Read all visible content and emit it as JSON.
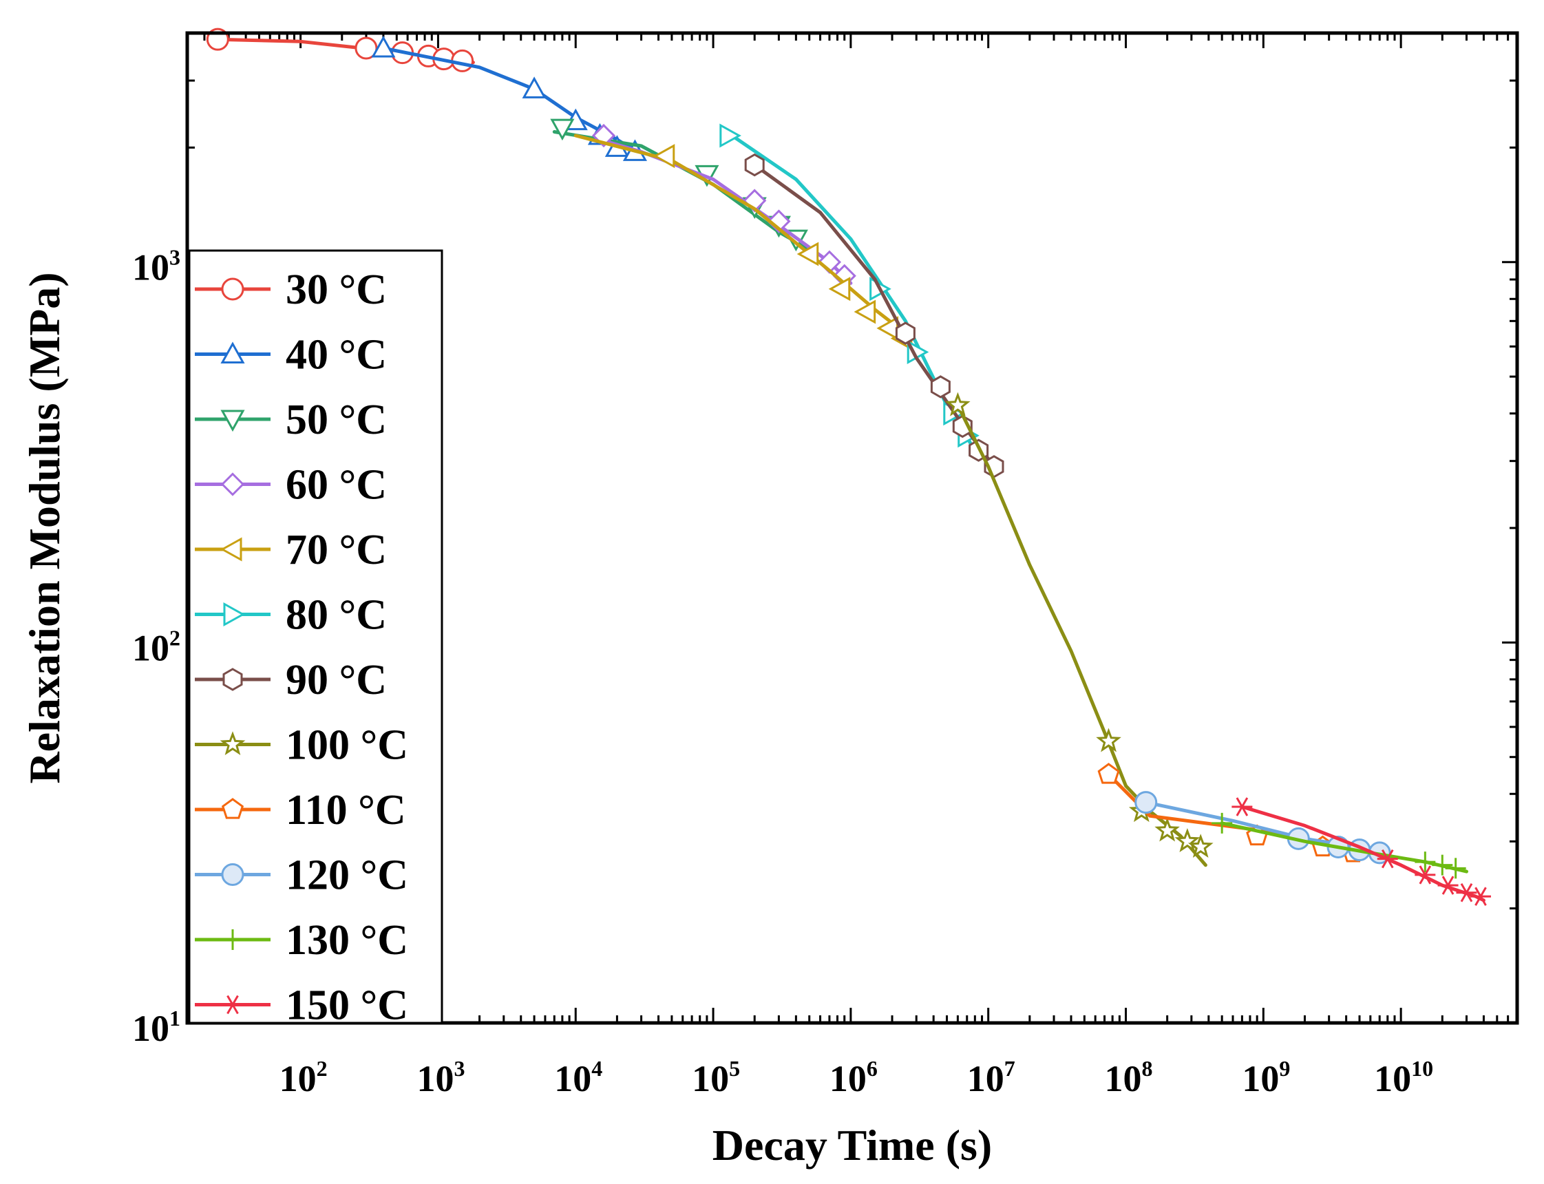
{
  "chart_data": {
    "type": "line",
    "title": "",
    "xlabel": "Decay Time (s)",
    "ylabel": "Relaxation Modulus (MPa)",
    "x_scale": "log",
    "y_scale": "log",
    "xlim": [
      15,
      70000000000
    ],
    "ylim": [
      10,
      4000
    ],
    "x_ticks": [
      {
        "value": 100,
        "base": "10",
        "exp": "2"
      },
      {
        "value": 1000,
        "base": "10",
        "exp": "3"
      },
      {
        "value": 10000,
        "base": "10",
        "exp": "4"
      },
      {
        "value": 100000,
        "base": "10",
        "exp": "5"
      },
      {
        "value": 1000000,
        "base": "10",
        "exp": "6"
      },
      {
        "value": 10000000,
        "base": "10",
        "exp": "7"
      },
      {
        "value": 100000000,
        "base": "10",
        "exp": "8"
      },
      {
        "value": 1000000000,
        "base": "10",
        "exp": "9"
      },
      {
        "value": 10000000000,
        "base": "10",
        "exp": "10"
      }
    ],
    "y_ticks": [
      {
        "value": 10,
        "base": "10",
        "exp": "1"
      },
      {
        "value": 100,
        "base": "10",
        "exp": "2"
      },
      {
        "value": 1000,
        "base": "10",
        "exp": "3"
      }
    ],
    "legend_position": "left",
    "series": [
      {
        "name": "30 °C",
        "color": "#e8453c",
        "marker": "circle",
        "line": [
          [
            25,
            3850
          ],
          [
            100,
            3800
          ],
          [
            400,
            3600
          ],
          [
            1000,
            3450
          ],
          [
            1800,
            3350
          ]
        ],
        "points": [
          [
            25,
            3850
          ],
          [
            300,
            3650
          ],
          [
            550,
            3550
          ],
          [
            850,
            3480
          ],
          [
            1100,
            3420
          ],
          [
            1500,
            3380
          ]
        ]
      },
      {
        "name": "40 °C",
        "color": "#1f6fd1",
        "marker": "triangle-up",
        "line": [
          [
            400,
            3650
          ],
          [
            2000,
            3250
          ],
          [
            5000,
            2850
          ],
          [
            10000,
            2400
          ],
          [
            20000,
            2100
          ],
          [
            30000,
            1920
          ]
        ],
        "points": [
          [
            400,
            3650
          ],
          [
            5000,
            2850
          ],
          [
            10000,
            2350
          ],
          [
            15000,
            2150
          ],
          [
            20000,
            2000
          ],
          [
            27000,
            1950
          ]
        ]
      },
      {
        "name": "50 °C",
        "color": "#2fa36b",
        "marker": "triangle-down",
        "line": [
          [
            7000,
            2200
          ],
          [
            30000,
            2020
          ],
          [
            100000,
            1600
          ],
          [
            300000,
            1200
          ],
          [
            500000,
            1080
          ]
        ],
        "points": [
          [
            8000,
            2250
          ],
          [
            90000,
            1700
          ],
          [
            200000,
            1400
          ],
          [
            300000,
            1250
          ],
          [
            400000,
            1150
          ]
        ]
      },
      {
        "name": "60 °C",
        "color": "#a66ee0",
        "marker": "diamond",
        "line": [
          [
            15000,
            2100
          ],
          [
            30000,
            1950
          ],
          [
            100000,
            1650
          ],
          [
            300000,
            1250
          ],
          [
            700000,
            1000
          ],
          [
            1000000,
            880
          ]
        ],
        "points": [
          [
            16000,
            2150
          ],
          [
            200000,
            1450
          ],
          [
            300000,
            1280
          ],
          [
            700000,
            1000
          ],
          [
            900000,
            920
          ]
        ]
      },
      {
        "name": "70 °C",
        "color": "#c9a012",
        "marker": "triangle-left",
        "line": [
          [
            10000,
            2150
          ],
          [
            50000,
            1850
          ],
          [
            200000,
            1380
          ],
          [
            700000,
            950
          ],
          [
            1500000,
            750
          ],
          [
            2500000,
            650
          ]
        ],
        "points": [
          [
            45000,
            1900
          ],
          [
            500000,
            1050
          ],
          [
            850000,
            850
          ],
          [
            1300000,
            740
          ],
          [
            1900000,
            670
          ],
          [
            2400000,
            630
          ]
        ]
      },
      {
        "name": "80 °C",
        "color": "#22c7c7",
        "marker": "triangle-right",
        "line": [
          [
            125000,
            2200
          ],
          [
            400000,
            1650
          ],
          [
            1000000,
            1150
          ],
          [
            2500000,
            700
          ],
          [
            5000000,
            420
          ],
          [
            8000000,
            320
          ]
        ],
        "points": [
          [
            130000,
            2150
          ],
          [
            1600000,
            850
          ],
          [
            3000000,
            580
          ],
          [
            5500000,
            400
          ],
          [
            7000000,
            350
          ]
        ]
      },
      {
        "name": "90 °C",
        "color": "#7a4e4a",
        "marker": "hexagon",
        "line": [
          [
            200000,
            1800
          ],
          [
            600000,
            1350
          ],
          [
            1500000,
            900
          ],
          [
            3000000,
            560
          ],
          [
            6000000,
            390
          ],
          [
            11000000,
            290
          ]
        ],
        "points": [
          [
            200000,
            1800
          ],
          [
            2500000,
            650
          ],
          [
            4500000,
            470
          ],
          [
            6500000,
            370
          ],
          [
            8500000,
            320
          ],
          [
            11000000,
            290
          ]
        ]
      },
      {
        "name": "100 °C",
        "color": "#8b8e14",
        "marker": "star",
        "line": [
          [
            6000000,
            420
          ],
          [
            10000000,
            290
          ],
          [
            20000000,
            160
          ],
          [
            40000000,
            95
          ],
          [
            70000000,
            58
          ],
          [
            100000000,
            42
          ],
          [
            150000000,
            36
          ],
          [
            250000000,
            31
          ],
          [
            380000000,
            26
          ]
        ],
        "points": [
          [
            6000000,
            420
          ],
          [
            75000000,
            55
          ],
          [
            130000000,
            36
          ],
          [
            200000000,
            32
          ],
          [
            280000000,
            30
          ],
          [
            350000000,
            29
          ]
        ]
      },
      {
        "name": "110 °C",
        "color": "#f5680f",
        "marker": "pentagon",
        "line": [
          [
            75000000,
            45
          ],
          [
            150000000,
            35
          ],
          [
            1000000000,
            32
          ],
          [
            3000000000,
            29
          ],
          [
            5000000000,
            28
          ]
        ],
        "points": [
          [
            75000000,
            45
          ],
          [
            900000000,
            31
          ],
          [
            2700000000,
            29
          ],
          [
            4500000000,
            28
          ]
        ]
      },
      {
        "name": "120 °C",
        "color": "#6da7e0",
        "marker": "circle-filled",
        "line": [
          [
            140000000,
            38
          ],
          [
            600000000,
            34
          ],
          [
            2000000000,
            30.5
          ],
          [
            5000000000,
            29
          ],
          [
            8000000000,
            27.5
          ]
        ],
        "points": [
          [
            140000000,
            38
          ],
          [
            1800000000,
            30.5
          ],
          [
            3500000000,
            29
          ],
          [
            5000000000,
            28.5
          ],
          [
            7000000000,
            28
          ]
        ]
      },
      {
        "name": "130 °C",
        "color": "#6cba12",
        "marker": "plus",
        "line": [
          [
            500000000,
            33.5
          ],
          [
            2000000000,
            30
          ],
          [
            6000000000,
            28
          ],
          [
            15000000000,
            26.5
          ],
          [
            30000000000,
            25
          ]
        ],
        "points": [
          [
            500000000,
            33.5
          ],
          [
            15000000000,
            26.5
          ],
          [
            20000000000,
            26
          ],
          [
            25000000000,
            25.5
          ]
        ]
      },
      {
        "name": "150 °C",
        "color": "#ee3045",
        "marker": "asterisk",
        "line": [
          [
            700000000,
            37
          ],
          [
            2000000000,
            33
          ],
          [
            5000000000,
            29
          ],
          [
            10000000000,
            26
          ],
          [
            20000000000,
            23
          ],
          [
            35000000000,
            21.5
          ],
          [
            40000000000,
            21
          ]
        ],
        "points": [
          [
            700000000,
            37
          ],
          [
            8000000000,
            27
          ],
          [
            15000000000,
            24.5
          ],
          [
            22000000000,
            23
          ],
          [
            30000000000,
            22
          ],
          [
            38000000000,
            21.5
          ]
        ]
      }
    ]
  }
}
